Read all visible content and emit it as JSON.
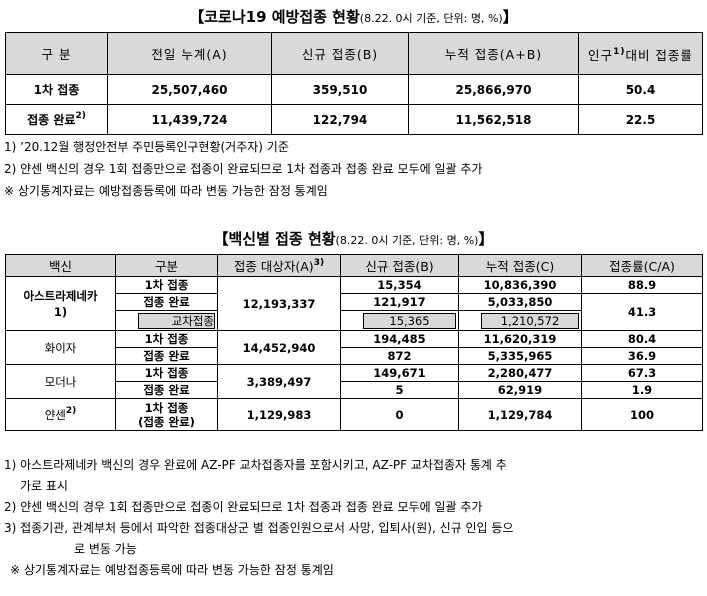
{
  "section1": {
    "title": "【코로나19 예방접종 현황",
    "subtitle": "(8.22. 0시 기준, 단위: 명, %)",
    "title_end": "】",
    "headers": [
      "구 분",
      "전일 누계(A)",
      "신규 접종(B)",
      "누적 접종(A+B)",
      "인구",
      "1)",
      "대비 접종률"
    ],
    "rows": [
      {
        "label": "1차 접종",
        "sup": "",
        "prev": "25,507,460",
        "new": "359,510",
        "cum": "25,866,970",
        "rate": "50.4"
      },
      {
        "label": "접종 완료",
        "sup": "2)",
        "prev": "11,439,724",
        "new": "122,794",
        "cum": "11,562,518",
        "rate": "22.5"
      }
    ],
    "notes": [
      "1) ’20.12월 행정안전부 주민등록인구현황(거주자) 기준",
      "2) 얀센 백신의 경우 1회 접종만으로 접종이 완료되므로 1차 접종과 접종 완료 모두에 일괄 추가",
      "※ 상기통계자료는 예방접종등록에 따라 변동 가능한 잠정 통계임"
    ]
  },
  "section2": {
    "title": "【백신별 접종 현황",
    "subtitle": "(8.22. 0시 기준, 단위: 명, %)",
    "title_end": "】",
    "headers": [
      "백신",
      "구분",
      "접종 대상자(A)",
      "3)",
      "신규 접종(B)",
      "누적 접종(C)",
      "접종률(C/A)"
    ],
    "az": {
      "name": "아스트라제네카",
      "sup": "1)",
      "target": "12,193,337",
      "first": {
        "label": "1차 접종",
        "new": "15,354",
        "cum": "10,836,390",
        "rate": "88.9"
      },
      "full": {
        "label": "접종 완료",
        "new": "121,917",
        "cum": "5,033,850",
        "rate": "41.3"
      },
      "cross": {
        "label": "교차접종",
        "new": "15,365",
        "cum": "1,210,572"
      }
    },
    "pfizer": {
      "name": "화이자",
      "target": "14,452,940",
      "first": {
        "label": "1차 접종",
        "new": "194,485",
        "cum": "11,620,319",
        "rate": "80.4"
      },
      "full": {
        "label": "접종 완료",
        "new": "872",
        "cum": "5,335,965",
        "rate": "36.9"
      }
    },
    "moderna": {
      "name": "모더나",
      "target": "3,389,497",
      "first": {
        "label": "1차 접종",
        "new": "149,671",
        "cum": "2,280,477",
        "rate": "67.3"
      },
      "full": {
        "label": "접종 완료",
        "new": "5",
        "cum": "62,919",
        "rate": "1.9"
      }
    },
    "janssen": {
      "name": "얀센",
      "sup": "2)",
      "label1": "1차 접종",
      "label2": "(접종 완료)",
      "target": "1,129,983",
      "new": "0",
      "cum": "1,129,784",
      "rate": "100"
    },
    "notes": [
      "1) 아스트라제네카 백신의 경우 완료에 AZ-PF 교차접종자를 포함시키고, AZ-PF 교차접종자 통계 추",
      "가로 표시",
      "2) 얀센 백신의 경우 1회 접종만으로 접종이 완료되므로 1차 접종과 접종 완료 모두에 일괄 추가",
      "3) 접종기관, 관계부처 등에서 파악한 접종대상군 별 접종인원으로서 사망, 입퇴사(원), 신규 인입 등으",
      "로 변동 가능",
      "※ 상기통계자료는 예방접종등록에 따라 변동 가능한 잠정 통계임"
    ]
  }
}
